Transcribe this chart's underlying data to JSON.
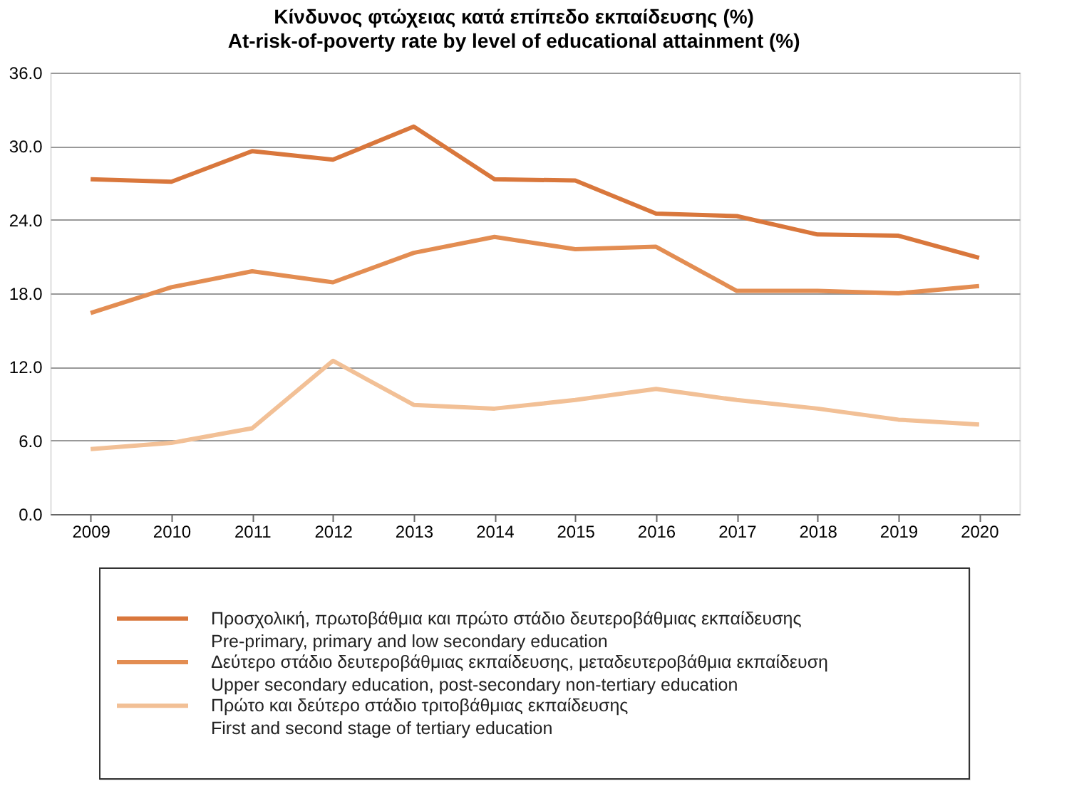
{
  "chart_data": {
    "type": "line",
    "title": "Κίνδυνος φτώχειας κατά επίπεδο εκπαίδευσης (%)",
    "subtitle": "At-risk-of-poverty rate by level of educational attainment (%)",
    "categories": [
      "2009",
      "2010",
      "2011",
      "2012",
      "2013",
      "2014",
      "2015",
      "2016",
      "2017",
      "2018",
      "2019",
      "2020"
    ],
    "series": [
      {
        "name": "Προσχολική, πρωτοβάθμια και πρώτο στάδιο δευτεροβάθμιας εκπαίδευσης\nPre-primary, primary and low secondary education",
        "color": "#d9773c",
        "values": [
          27.3,
          27.1,
          29.6,
          28.9,
          31.6,
          27.3,
          27.2,
          24.5,
          24.3,
          22.8,
          22.7,
          20.9
        ]
      },
      {
        "name": "Δεύτερο στάδιο δευτεροβάθμιας εκπαίδευσης, μεταδευτεροβάθμια εκπαίδευση\nUpper secondary education, post-secondary non-tertiary education",
        "color": "#e38d52",
        "values": [
          16.4,
          18.5,
          19.8,
          18.9,
          21.3,
          22.6,
          21.6,
          21.8,
          18.2,
          18.2,
          18.0,
          18.6
        ]
      },
      {
        "name": "Πρώτο και δεύτερο στάδιο τριτοβάθμιας εκπαίδευσης\nFirst and second stage of tertiary education",
        "color": "#f2c096",
        "values": [
          5.3,
          5.8,
          7.0,
          12.5,
          8.9,
          8.6,
          9.3,
          10.2,
          9.3,
          8.6,
          7.7,
          7.3
        ]
      }
    ],
    "ylim": [
      0,
      36
    ],
    "yticks": [
      {
        "value": 0,
        "label": "0.0"
      },
      {
        "value": 6,
        "label": "6.0"
      },
      {
        "value": 12,
        "label": "12.0"
      },
      {
        "value": 18,
        "label": "18.0"
      },
      {
        "value": 24,
        "label": "24.0"
      },
      {
        "value": 30,
        "label": "30.0"
      },
      {
        "value": 36,
        "label": "36.0"
      }
    ],
    "grid": "y",
    "legend": "bottom",
    "marker": "none",
    "line_style": "solid"
  }
}
